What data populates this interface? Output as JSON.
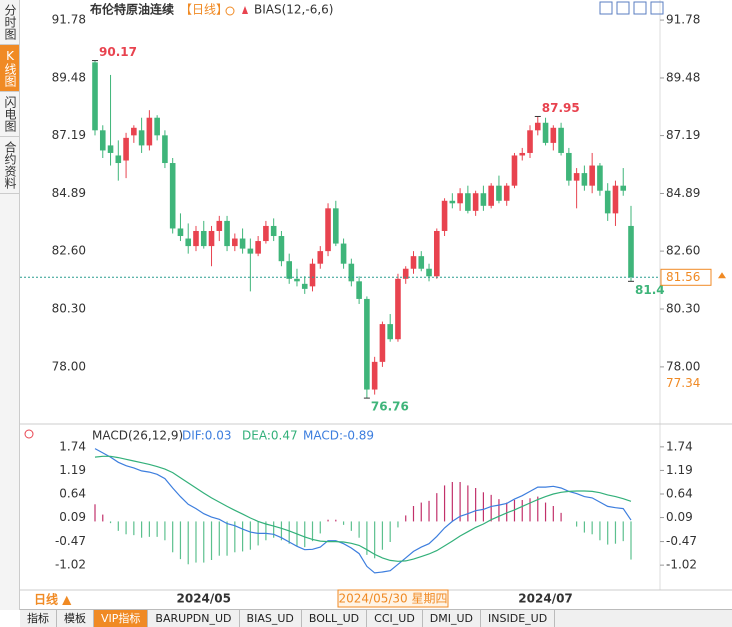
{
  "sidebar": {
    "tabs": [
      "分时图",
      "K线图",
      "闪电图",
      "合约资料"
    ]
  },
  "chart_data": {
    "type": "candlestick",
    "title": "布伦特原油连续",
    "period": "【日线】",
    "indicator": "BIAS(12,-6,6)",
    "up_color": "#e8434f",
    "down_color": "#3fb57a",
    "ylim": [
      75.89,
      92.18
    ],
    "yticks": [
      {
        "value": 91.78,
        "label": "91.78"
      },
      {
        "value": 89.48,
        "label": "89.48"
      },
      {
        "value": 87.19,
        "label": "87.19"
      },
      {
        "value": 84.89,
        "label": "84.89"
      },
      {
        "value": 82.6,
        "label": "82.60"
      },
      {
        "value": 80.3,
        "label": "80.30"
      },
      {
        "value": 78,
        "label": "78.00"
      }
    ],
    "price_marker": 77.34,
    "crosshair_date": "2024/05/30 星期四",
    "period_button": "日线 ▲",
    "categories": [
      null,
      null,
      null,
      null,
      null,
      null,
      null,
      null,
      null,
      null,
      null,
      null,
      null,
      null,
      "2024/05",
      null,
      null,
      null,
      null,
      null,
      null,
      null,
      null,
      null,
      null,
      null,
      null,
      null,
      null,
      null,
      null,
      null,
      null,
      null,
      null,
      null,
      null,
      null,
      null,
      null,
      null,
      null,
      null,
      null,
      null,
      null,
      null,
      null,
      null,
      null,
      null,
      null,
      null,
      null,
      null,
      null,
      null,
      null,
      "2024/07",
      null,
      null,
      null,
      null,
      null,
      null,
      null,
      null,
      null,
      null,
      null
    ],
    "candles": [
      [
        90.1,
        90.17,
        87.2,
        87.4
      ],
      [
        87.4,
        87.6,
        86.3,
        86.6
      ],
      [
        86.8,
        89.6,
        86,
        86.5
      ],
      [
        86.4,
        87,
        85.4,
        86.1
      ],
      [
        86.2,
        87.3,
        85.5,
        87.1
      ],
      [
        87.2,
        87.6,
        86.9,
        87.5
      ],
      [
        87.4,
        87.9,
        86.5,
        86.8
      ],
      [
        86.8,
        88.2,
        86.6,
        87.9
      ],
      [
        87.9,
        88,
        87,
        87.2
      ],
      [
        87.2,
        87.4,
        85.9,
        86.1
      ],
      [
        86.1,
        86.3,
        83.3,
        83.5
      ],
      [
        83.5,
        84.1,
        83,
        83.2
      ],
      [
        83.1,
        83.7,
        82.5,
        82.8
      ],
      [
        82.8,
        83.6,
        82.6,
        83.4
      ],
      [
        83.4,
        83.8,
        82.7,
        82.8
      ],
      [
        82.8,
        83.6,
        82,
        83.4
      ],
      [
        83.4,
        84,
        83,
        83.8
      ],
      [
        83.8,
        84,
        82.6,
        82.8
      ],
      [
        82.8,
        83.3,
        82.6,
        83.1
      ],
      [
        83.1,
        83.5,
        82.5,
        82.7
      ],
      [
        82.7,
        83.1,
        81,
        82.5
      ],
      [
        82.5,
        83.2,
        82.4,
        83
      ],
      [
        83,
        83.8,
        82.9,
        83.6
      ],
      [
        83.6,
        83.9,
        83,
        83.2
      ],
      [
        83.2,
        83.4,
        82,
        82.2
      ],
      [
        82.2,
        82.5,
        81.3,
        81.5
      ],
      [
        81.5,
        81.9,
        81.2,
        81.4
      ],
      [
        81.3,
        81.6,
        80.9,
        81.1
      ],
      [
        81.2,
        82.3,
        81,
        82.1
      ],
      [
        82.1,
        82.8,
        81.9,
        82.6
      ],
      [
        82.6,
        84.5,
        82.4,
        84.3
      ],
      [
        84.3,
        84.6,
        82.8,
        82.9
      ],
      [
        82.9,
        83.1,
        81.9,
        82.1
      ],
      [
        82.1,
        82.3,
        81.2,
        81.4
      ],
      [
        81.4,
        81.6,
        80.5,
        80.7
      ],
      [
        80.7,
        80.8,
        76.76,
        77.1
      ],
      [
        77.1,
        78.4,
        76.9,
        78.2
      ],
      [
        78.2,
        79.8,
        78,
        79.7
      ],
      [
        79.7,
        80.1,
        79,
        79.1
      ],
      [
        79.1,
        81.7,
        79,
        81.5
      ],
      [
        81.5,
        82,
        81.3,
        81.9
      ],
      [
        81.9,
        82.6,
        81.7,
        82.4
      ],
      [
        82.4,
        82.6,
        81.8,
        81.9
      ],
      [
        81.9,
        82.1,
        81.4,
        81.6
      ],
      [
        81.6,
        83.5,
        81.5,
        83.4
      ],
      [
        83.4,
        84.7,
        83.2,
        84.6
      ],
      [
        84.6,
        84.9,
        84.3,
        84.5
      ],
      [
        84.5,
        85.1,
        84.2,
        84.9
      ],
      [
        84.9,
        85.2,
        84.1,
        84.2
      ],
      [
        84.2,
        85,
        84,
        84.9
      ],
      [
        84.9,
        85.2,
        84.2,
        84.4
      ],
      [
        84.4,
        85.3,
        84.3,
        85.2
      ],
      [
        85.2,
        85.6,
        84.5,
        84.6
      ],
      [
        84.6,
        85.3,
        84.4,
        85.2
      ],
      [
        85.2,
        86.5,
        85.1,
        86.4
      ],
      [
        86.4,
        86.7,
        86.2,
        86.5
      ],
      [
        86.5,
        87.6,
        86.3,
        87.4
      ],
      [
        87.4,
        87.95,
        87.2,
        87.7
      ],
      [
        87.7,
        87.9,
        86.8,
        86.9
      ],
      [
        86.9,
        87.6,
        86.6,
        87.5
      ],
      [
        87.5,
        87.7,
        86.4,
        86.5
      ],
      [
        86.5,
        86.7,
        85.2,
        85.4
      ],
      [
        85.4,
        85.9,
        84.3,
        85.7
      ],
      [
        85.7,
        86,
        85,
        85.2
      ],
      [
        85.2,
        86.5,
        84.9,
        86
      ],
      [
        86,
        86.1,
        84.8,
        85
      ],
      [
        85,
        85.3,
        83.8,
        84.1
      ],
      [
        84.1,
        85.4,
        83.6,
        85.2
      ],
      [
        85.2,
        85.9,
        84.8,
        85
      ],
      [
        83.6,
        84.4,
        81.4,
        81.56
      ]
    ],
    "extreme_labels": [
      [
        0,
        1
      ],
      [
        57,
        1
      ],
      [
        35,
        2
      ],
      [
        69,
        2
      ]
    ],
    "macd": {
      "title": "MACD(26,12,9)",
      "dif_label": "DIF:0.03",
      "dea_label": "DEA:0.47",
      "macd_label": "MACD:-0.89",
      "ylim": [
        -1.6,
        1.9
      ],
      "yticks": [
        1.74,
        1.19,
        0.64,
        0.09,
        -0.47,
        -1.02
      ],
      "series": [
        {
          "name": "DIF",
          "color": "#3d7ede",
          "values": [
            1.7,
            1.6,
            1.5,
            1.38,
            1.3,
            1.25,
            1.18,
            1.15,
            1.1,
            1,
            0.78,
            0.58,
            0.4,
            0.3,
            0.18,
            0.1,
            0.05,
            -0.05,
            -0.1,
            -0.18,
            -0.25,
            -0.28,
            -0.28,
            -0.3,
            -0.38,
            -0.48,
            -0.58,
            -0.66,
            -0.65,
            -0.6,
            -0.45,
            -0.45,
            -0.52,
            -0.62,
            -0.75,
            -1.05,
            -1.2,
            -1.18,
            -1.15,
            -1,
            -0.85,
            -0.7,
            -0.6,
            -0.52,
            -0.35,
            -0.15,
            0,
            0.12,
            0.18,
            0.25,
            0.28,
            0.35,
            0.38,
            0.42,
            0.52,
            0.6,
            0.7,
            0.8,
            0.8,
            0.82,
            0.78,
            0.7,
            0.65,
            0.58,
            0.55,
            0.45,
            0.35,
            0.32,
            0.3,
            0.03
          ]
        },
        {
          "name": "DEA",
          "color": "#33b07a",
          "values": [
            1.5,
            1.52,
            1.52,
            1.49,
            1.45,
            1.41,
            1.37,
            1.33,
            1.28,
            1.22,
            1.14,
            1.02,
            0.9,
            0.78,
            0.66,
            0.55,
            0.45,
            0.35,
            0.26,
            0.17,
            0.08,
            0,
            -0.06,
            -0.11,
            -0.16,
            -0.22,
            -0.29,
            -0.36,
            -0.42,
            -0.46,
            -0.47,
            -0.47,
            -0.48,
            -0.51,
            -0.56,
            -0.66,
            -0.77,
            -0.85,
            -0.91,
            -0.93,
            -0.92,
            -0.88,
            -0.82,
            -0.76,
            -0.68,
            -0.57,
            -0.46,
            -0.34,
            -0.24,
            -0.14,
            -0.06,
            0.04,
            0.12,
            0.2,
            0.27,
            0.35,
            0.43,
            0.51,
            0.58,
            0.64,
            0.68,
            0.7,
            0.71,
            0.71,
            0.7,
            0.67,
            0.62,
            0.58,
            0.53,
            0.47
          ]
        }
      ],
      "histogram": [
        0.4,
        0.16,
        -0.04,
        -0.22,
        -0.3,
        -0.32,
        -0.38,
        -0.36,
        -0.36,
        -0.44,
        -0.72,
        -0.88,
        -1,
        -0.96,
        -0.96,
        -0.9,
        -0.8,
        -0.8,
        -0.72,
        -0.7,
        -0.66,
        -0.56,
        -0.44,
        -0.38,
        -0.44,
        -0.52,
        -0.58,
        -0.6,
        -0.46,
        -0.28,
        0.04,
        0.04,
        -0.08,
        -0.22,
        -0.38,
        -0.78,
        -0.86,
        -0.66,
        -0.48,
        -0.14,
        0.14,
        0.36,
        0.44,
        0.48,
        0.66,
        0.84,
        0.92,
        0.92,
        0.84,
        0.78,
        0.68,
        0.62,
        0.52,
        0.44,
        0.5,
        0.5,
        0.54,
        0.58,
        0.44,
        0.36,
        0.2,
        0,
        -0.12,
        -0.26,
        -0.3,
        -0.44,
        -0.54,
        -0.52,
        -0.46,
        -0.89
      ]
    }
  },
  "bottom_tabs": [
    "指标",
    "模板",
    "VIP指标",
    "BARUPDN_UD",
    "BIAS_UD",
    "BOLL_UD",
    "CCI_UD",
    "DMI_UD",
    "INSIDE_UD"
  ]
}
